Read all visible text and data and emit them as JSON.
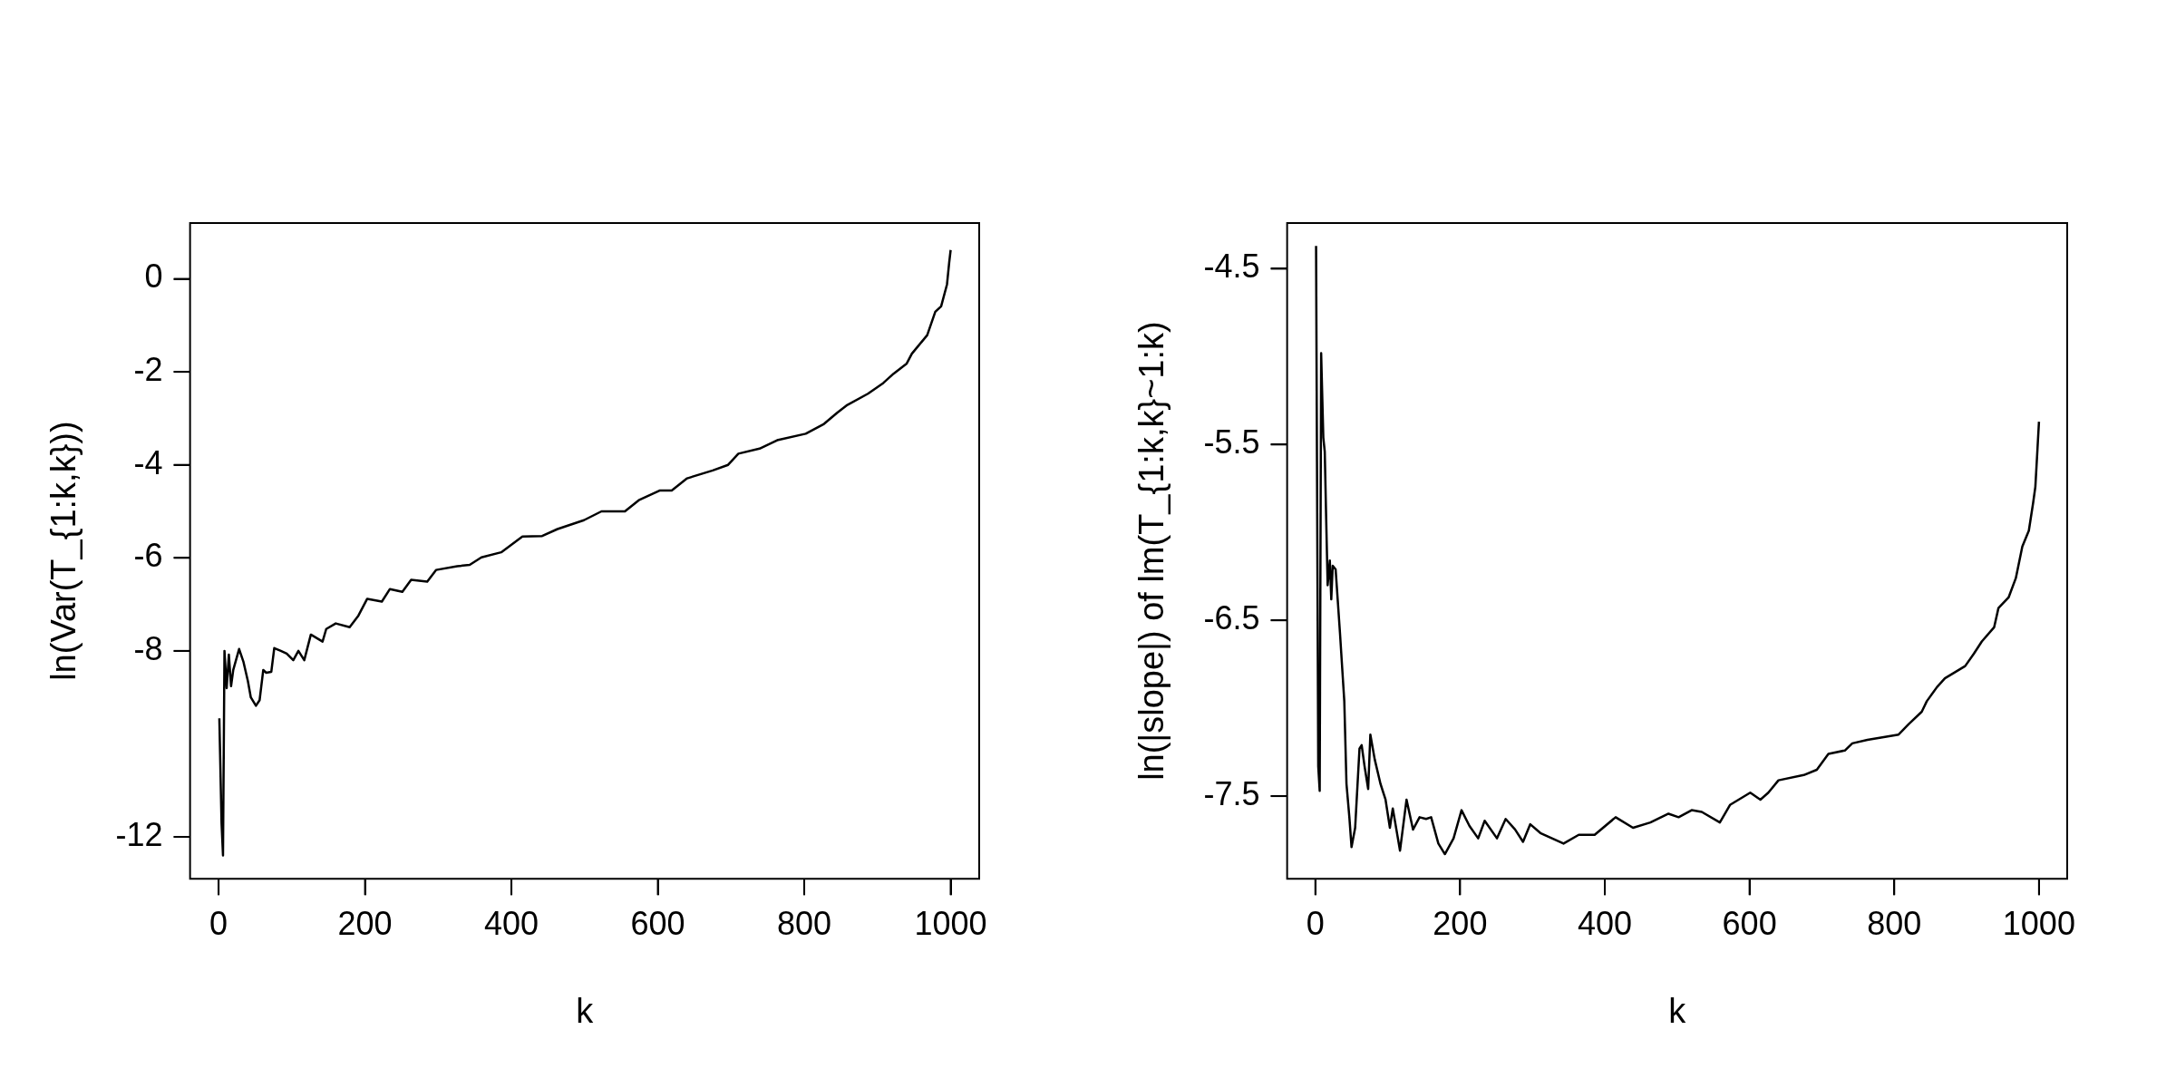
{
  "chart_data": [
    {
      "type": "line",
      "xlabel": "k",
      "ylabel": "ln(Var(T_{1:k,k}))",
      "xlim": [
        -39,
        1039
      ],
      "ylim": [
        -12.9,
        1.2
      ],
      "xticks": [
        0,
        200,
        400,
        600,
        800,
        1000
      ],
      "yticks": [
        -12,
        -8,
        -6,
        -4,
        -2,
        0
      ],
      "grid": false,
      "legend": false,
      "marker": "none",
      "line_style": "solid",
      "series": [
        {
          "color": "#000000",
          "x": [
            1,
            4,
            6,
            8,
            11,
            14,
            17,
            20,
            28,
            34,
            40,
            44,
            51,
            56,
            61,
            65,
            72,
            76,
            85,
            93,
            102,
            109,
            117,
            126,
            142,
            147,
            160,
            179,
            191,
            203,
            223,
            234,
            251,
            263,
            285,
            297,
            326,
            343,
            359,
            386,
            415,
            442,
            463,
            499,
            523,
            555,
            574,
            603,
            619,
            640,
            675,
            696,
            710,
            739,
            763,
            802,
            827,
            845,
            859,
            887,
            908,
            922,
            940,
            947,
            968,
            979,
            987,
            995,
            998,
            1000
          ],
          "values": [
            -9.45,
            -11.7,
            -12.4,
            -8.0,
            -8.8,
            -8.08,
            -8.76,
            -8.41,
            -7.96,
            -8.24,
            -8.65,
            -9.0,
            -9.18,
            -9.06,
            -8.41,
            -8.47,
            -8.45,
            -7.94,
            -8.0,
            -8.06,
            -8.2,
            -8.0,
            -8.2,
            -7.65,
            -7.8,
            -7.53,
            -7.41,
            -7.49,
            -7.24,
            -6.88,
            -6.94,
            -6.67,
            -6.73,
            -6.47,
            -6.51,
            -6.26,
            -6.18,
            -6.15,
            -5.99,
            -5.88,
            -5.54,
            -5.53,
            -5.38,
            -5.19,
            -5.0,
            -5.0,
            -4.76,
            -4.55,
            -4.55,
            -4.29,
            -4.12,
            -4.0,
            -3.76,
            -3.65,
            -3.47,
            -3.33,
            -3.12,
            -2.88,
            -2.71,
            -2.47,
            -2.24,
            -2.04,
            -1.82,
            -1.61,
            -1.21,
            -0.71,
            -0.59,
            -0.12,
            0.35,
            0.62
          ]
        }
      ]
    },
    {
      "type": "line",
      "xlabel": "k",
      "ylabel": "ln(|slope|) of lm(T_{1:k,k}~1:k)",
      "xlim": [
        -39,
        1039
      ],
      "ylim": [
        -7.97,
        -4.24
      ],
      "xticks": [
        0,
        200,
        400,
        600,
        800,
        1000
      ],
      "yticks": [
        -7.5,
        -6.5,
        -5.5,
        -4.5
      ],
      "grid": false,
      "legend": false,
      "marker": "none",
      "line_style": "solid",
      "series": [
        {
          "color": "#000000",
          "x": [
            1,
            4,
            6,
            8,
            11,
            13,
            15,
            17,
            20,
            22,
            24,
            28,
            34,
            40,
            43,
            47,
            50,
            55,
            61,
            64,
            68,
            73,
            76,
            82,
            90,
            97,
            103,
            107,
            117,
            126,
            135,
            144,
            153,
            160,
            170,
            179,
            191,
            202,
            213,
            225,
            234,
            251,
            263,
            276,
            287,
            297,
            311,
            343,
            364,
            386,
            415,
            439,
            463,
            488,
            502,
            520,
            534,
            559,
            573,
            601,
            615,
            626,
            640,
            675,
            693,
            709,
            732,
            742,
            763,
            806,
            820,
            838,
            845,
            859,
            870,
            898,
            910,
            921,
            938,
            944,
            958,
            968,
            977,
            986,
            992,
            995,
            998,
            1000
          ],
          "values": [
            -4.37,
            -7.33,
            -7.47,
            -4.98,
            -5.46,
            -5.54,
            -5.93,
            -6.3,
            -6.16,
            -6.38,
            -6.19,
            -6.21,
            -6.57,
            -6.96,
            -7.43,
            -7.62,
            -7.79,
            -7.68,
            -7.23,
            -7.21,
            -7.33,
            -7.46,
            -7.15,
            -7.29,
            -7.43,
            -7.52,
            -7.68,
            -7.57,
            -7.81,
            -7.52,
            -7.69,
            -7.62,
            -7.63,
            -7.62,
            -7.77,
            -7.83,
            -7.74,
            -7.58,
            -7.67,
            -7.74,
            -7.64,
            -7.74,
            -7.63,
            -7.69,
            -7.76,
            -7.66,
            -7.71,
            -7.77,
            -7.72,
            -7.72,
            -7.62,
            -7.68,
            -7.65,
            -7.6,
            -7.62,
            -7.58,
            -7.59,
            -7.65,
            -7.55,
            -7.48,
            -7.52,
            -7.48,
            -7.41,
            -7.38,
            -7.35,
            -7.26,
            -7.24,
            -7.2,
            -7.18,
            -7.15,
            -7.09,
            -7.02,
            -6.96,
            -6.88,
            -6.83,
            -6.76,
            -6.69,
            -6.62,
            -6.54,
            -6.43,
            -6.37,
            -6.26,
            -6.08,
            -5.99,
            -5.83,
            -5.74,
            -5.52,
            -5.37
          ]
        }
      ]
    }
  ]
}
